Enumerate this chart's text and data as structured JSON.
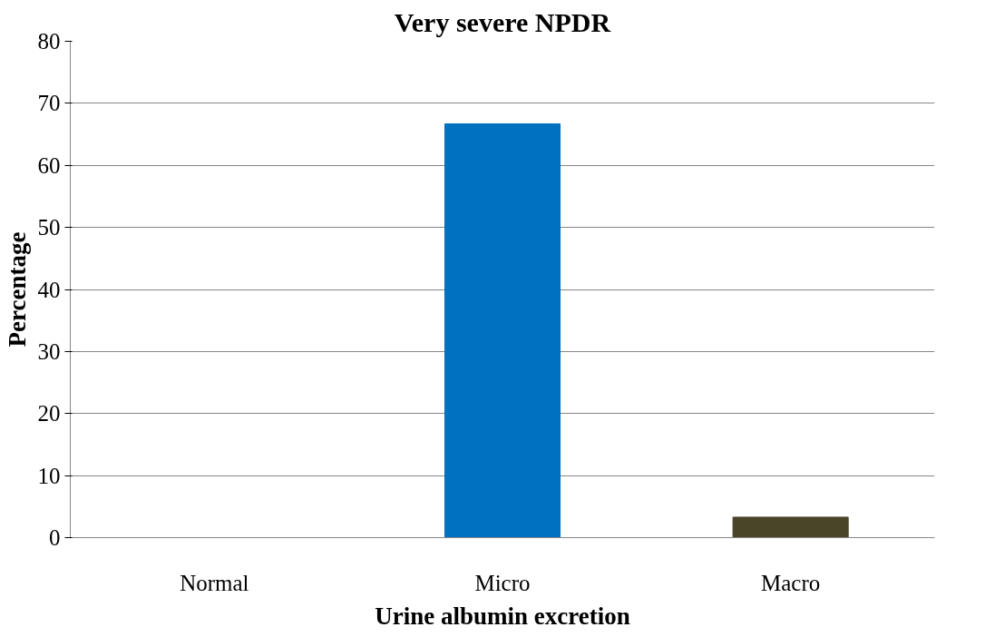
{
  "chart_data": {
    "type": "bar",
    "title": "Very severe NPDR",
    "xlabel": "Urine albumin excretion",
    "ylabel": "Percentage",
    "categories": [
      "Normal",
      "Micro",
      "Macro"
    ],
    "values": [
      0,
      66.7,
      3.3
    ],
    "colors": [
      "#0070c0",
      "#0070c0",
      "#4a4529"
    ],
    "ylim": [
      0,
      80
    ],
    "yticks": [
      0,
      10,
      20,
      30,
      40,
      50,
      60,
      70,
      80
    ],
    "grid": "y"
  }
}
